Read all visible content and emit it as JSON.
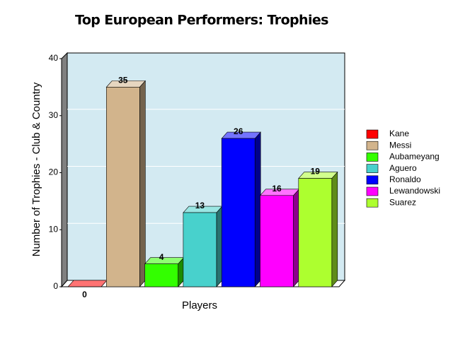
{
  "chart_data": {
    "type": "bar3d",
    "title": "Top European Performers: Trophies",
    "x_label": "Players",
    "y_label": "Number of Trophies - Club & Country",
    "categories": [
      "Kane",
      "Messi",
      "Aubameyang",
      "Aguero",
      "Ronaldo",
      "Lewandowski",
      "Suarez"
    ],
    "values": [
      0,
      35,
      4,
      13,
      26,
      16,
      19
    ],
    "colors": [
      "#ff0000",
      "#d2b48c",
      "#33ff00",
      "#48d1cc",
      "#0000ff",
      "#ff00ff",
      "#adff2f"
    ],
    "ylim": [
      0,
      40
    ],
    "yticks": [
      0,
      10,
      20,
      30,
      40
    ],
    "grid": true,
    "legend": "right"
  }
}
